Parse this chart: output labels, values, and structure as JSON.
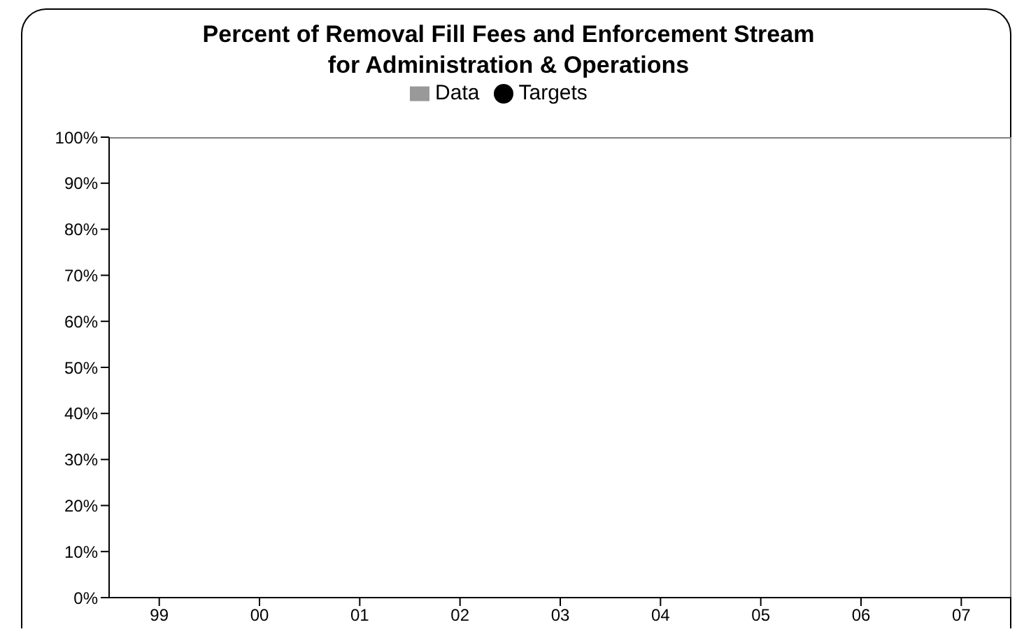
{
  "chart_data": {
    "type": "bar",
    "title": "Percent of Removal Fill Fees and Enforcement Stream\nfor Administration & Operations",
    "categories": [
      "99",
      "00",
      "01",
      "02",
      "03",
      "04",
      "05",
      "06",
      "07"
    ],
    "series": [
      {
        "name": "Data",
        "color": "#999999",
        "values": [
          null,
          null,
          null,
          null,
          null,
          null,
          null,
          null,
          null
        ]
      },
      {
        "name": "Targets",
        "type": "line",
        "color": "#000000",
        "marker": "circle",
        "values": [
          null,
          null,
          null,
          null,
          null,
          null,
          null,
          null,
          null
        ]
      }
    ],
    "ylim": [
      0,
      100
    ],
    "yticks": [
      {
        "value": 0,
        "label": "0%"
      },
      {
        "value": 10,
        "label": "10%"
      },
      {
        "value": 20,
        "label": "20%"
      },
      {
        "value": 30,
        "label": "30%"
      },
      {
        "value": 40,
        "label": "40%"
      },
      {
        "value": 50,
        "label": "50%"
      },
      {
        "value": 60,
        "label": "60%"
      },
      {
        "value": 70,
        "label": "70%"
      },
      {
        "value": 80,
        "label": "80%"
      },
      {
        "value": 90,
        "label": "90%"
      },
      {
        "value": 100,
        "label": "100%"
      }
    ],
    "legend": "top"
  }
}
